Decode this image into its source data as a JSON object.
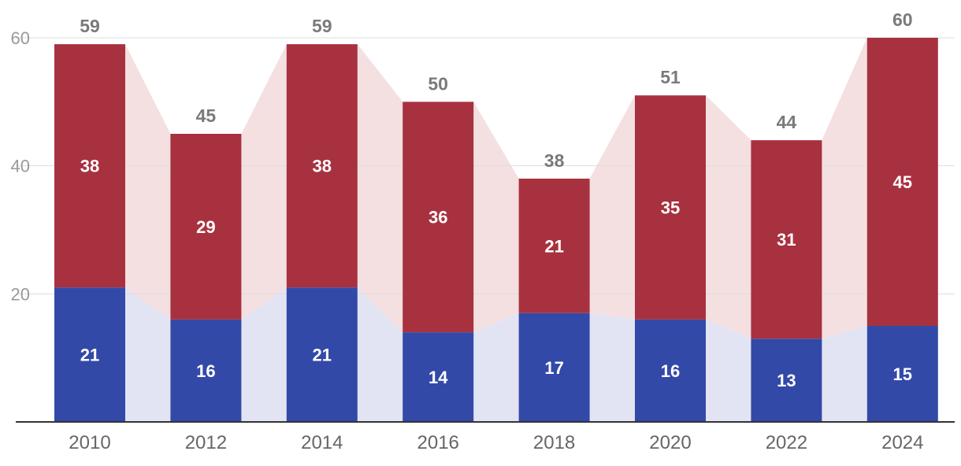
{
  "chart_data": {
    "type": "bar",
    "stacked": true,
    "categories": [
      "2010",
      "2012",
      "2014",
      "2016",
      "2018",
      "2020",
      "2022",
      "2024"
    ],
    "series": [
      {
        "values": [
          21,
          16,
          21,
          14,
          17,
          16,
          13,
          15
        ],
        "color": "#3349a8"
      },
      {
        "values": [
          38,
          29,
          38,
          36,
          21,
          35,
          31,
          45
        ],
        "color": "#a8313f"
      }
    ],
    "totals": [
      59,
      45,
      59,
      50,
      38,
      51,
      44,
      60
    ],
    "ylim": [
      0,
      60
    ],
    "yticks": [
      20,
      40,
      60
    ],
    "grid": true,
    "connector_areas": true,
    "connector_colors": [
      "#e2e4f4",
      "#f4dfe1"
    ],
    "title": "",
    "xlabel": "",
    "ylabel": ""
  }
}
